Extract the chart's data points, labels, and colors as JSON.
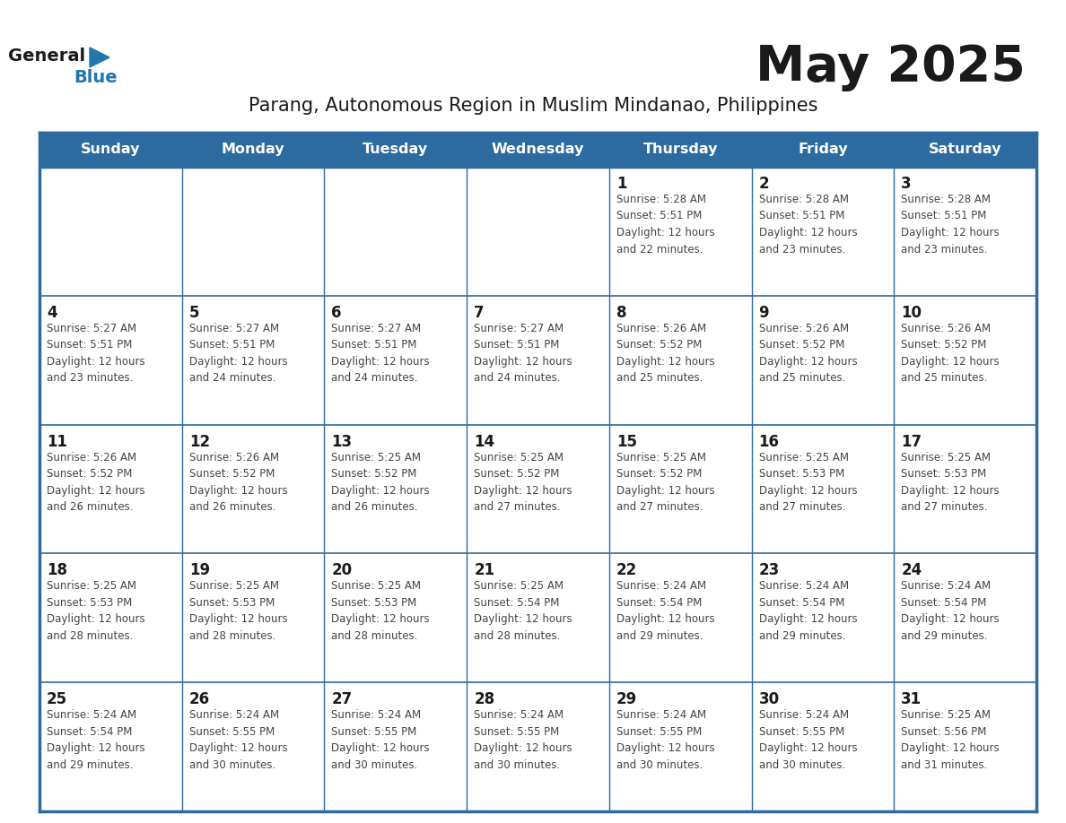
{
  "title": "May 2025",
  "subtitle": "Parang, Autonomous Region in Muslim Mindanao, Philippines",
  "header_bg_color": "#2D6A9F",
  "header_text_color": "#FFFFFF",
  "day_headers": [
    "Sunday",
    "Monday",
    "Tuesday",
    "Wednesday",
    "Thursday",
    "Friday",
    "Saturday"
  ],
  "calendar_data": [
    [
      {
        "day": "",
        "info": ""
      },
      {
        "day": "",
        "info": ""
      },
      {
        "day": "",
        "info": ""
      },
      {
        "day": "",
        "info": ""
      },
      {
        "day": "1",
        "info": "Sunrise: 5:28 AM\nSunset: 5:51 PM\nDaylight: 12 hours\nand 22 minutes."
      },
      {
        "day": "2",
        "info": "Sunrise: 5:28 AM\nSunset: 5:51 PM\nDaylight: 12 hours\nand 23 minutes."
      },
      {
        "day": "3",
        "info": "Sunrise: 5:28 AM\nSunset: 5:51 PM\nDaylight: 12 hours\nand 23 minutes."
      }
    ],
    [
      {
        "day": "4",
        "info": "Sunrise: 5:27 AM\nSunset: 5:51 PM\nDaylight: 12 hours\nand 23 minutes."
      },
      {
        "day": "5",
        "info": "Sunrise: 5:27 AM\nSunset: 5:51 PM\nDaylight: 12 hours\nand 24 minutes."
      },
      {
        "day": "6",
        "info": "Sunrise: 5:27 AM\nSunset: 5:51 PM\nDaylight: 12 hours\nand 24 minutes."
      },
      {
        "day": "7",
        "info": "Sunrise: 5:27 AM\nSunset: 5:51 PM\nDaylight: 12 hours\nand 24 minutes."
      },
      {
        "day": "8",
        "info": "Sunrise: 5:26 AM\nSunset: 5:52 PM\nDaylight: 12 hours\nand 25 minutes."
      },
      {
        "day": "9",
        "info": "Sunrise: 5:26 AM\nSunset: 5:52 PM\nDaylight: 12 hours\nand 25 minutes."
      },
      {
        "day": "10",
        "info": "Sunrise: 5:26 AM\nSunset: 5:52 PM\nDaylight: 12 hours\nand 25 minutes."
      }
    ],
    [
      {
        "day": "11",
        "info": "Sunrise: 5:26 AM\nSunset: 5:52 PM\nDaylight: 12 hours\nand 26 minutes."
      },
      {
        "day": "12",
        "info": "Sunrise: 5:26 AM\nSunset: 5:52 PM\nDaylight: 12 hours\nand 26 minutes."
      },
      {
        "day": "13",
        "info": "Sunrise: 5:25 AM\nSunset: 5:52 PM\nDaylight: 12 hours\nand 26 minutes."
      },
      {
        "day": "14",
        "info": "Sunrise: 5:25 AM\nSunset: 5:52 PM\nDaylight: 12 hours\nand 27 minutes."
      },
      {
        "day": "15",
        "info": "Sunrise: 5:25 AM\nSunset: 5:52 PM\nDaylight: 12 hours\nand 27 minutes."
      },
      {
        "day": "16",
        "info": "Sunrise: 5:25 AM\nSunset: 5:53 PM\nDaylight: 12 hours\nand 27 minutes."
      },
      {
        "day": "17",
        "info": "Sunrise: 5:25 AM\nSunset: 5:53 PM\nDaylight: 12 hours\nand 27 minutes."
      }
    ],
    [
      {
        "day": "18",
        "info": "Sunrise: 5:25 AM\nSunset: 5:53 PM\nDaylight: 12 hours\nand 28 minutes."
      },
      {
        "day": "19",
        "info": "Sunrise: 5:25 AM\nSunset: 5:53 PM\nDaylight: 12 hours\nand 28 minutes."
      },
      {
        "day": "20",
        "info": "Sunrise: 5:25 AM\nSunset: 5:53 PM\nDaylight: 12 hours\nand 28 minutes."
      },
      {
        "day": "21",
        "info": "Sunrise: 5:25 AM\nSunset: 5:54 PM\nDaylight: 12 hours\nand 28 minutes."
      },
      {
        "day": "22",
        "info": "Sunrise: 5:24 AM\nSunset: 5:54 PM\nDaylight: 12 hours\nand 29 minutes."
      },
      {
        "day": "23",
        "info": "Sunrise: 5:24 AM\nSunset: 5:54 PM\nDaylight: 12 hours\nand 29 minutes."
      },
      {
        "day": "24",
        "info": "Sunrise: 5:24 AM\nSunset: 5:54 PM\nDaylight: 12 hours\nand 29 minutes."
      }
    ],
    [
      {
        "day": "25",
        "info": "Sunrise: 5:24 AM\nSunset: 5:54 PM\nDaylight: 12 hours\nand 29 minutes."
      },
      {
        "day": "26",
        "info": "Sunrise: 5:24 AM\nSunset: 5:55 PM\nDaylight: 12 hours\nand 30 minutes."
      },
      {
        "day": "27",
        "info": "Sunrise: 5:24 AM\nSunset: 5:55 PM\nDaylight: 12 hours\nand 30 minutes."
      },
      {
        "day": "28",
        "info": "Sunrise: 5:24 AM\nSunset: 5:55 PM\nDaylight: 12 hours\nand 30 minutes."
      },
      {
        "day": "29",
        "info": "Sunrise: 5:24 AM\nSunset: 5:55 PM\nDaylight: 12 hours\nand 30 minutes."
      },
      {
        "day": "30",
        "info": "Sunrise: 5:24 AM\nSunset: 5:55 PM\nDaylight: 12 hours\nand 30 minutes."
      },
      {
        "day": "31",
        "info": "Sunrise: 5:25 AM\nSunset: 5:56 PM\nDaylight: 12 hours\nand 31 minutes."
      }
    ]
  ],
  "cell_bg_color": "#FFFFFF",
  "divider_color": "#2D6A9F",
  "text_color": "#444444",
  "day_num_color": "#1a1a1a",
  "logo_general_color": "#1A1A1A",
  "logo_blue_color": "#2176AE"
}
